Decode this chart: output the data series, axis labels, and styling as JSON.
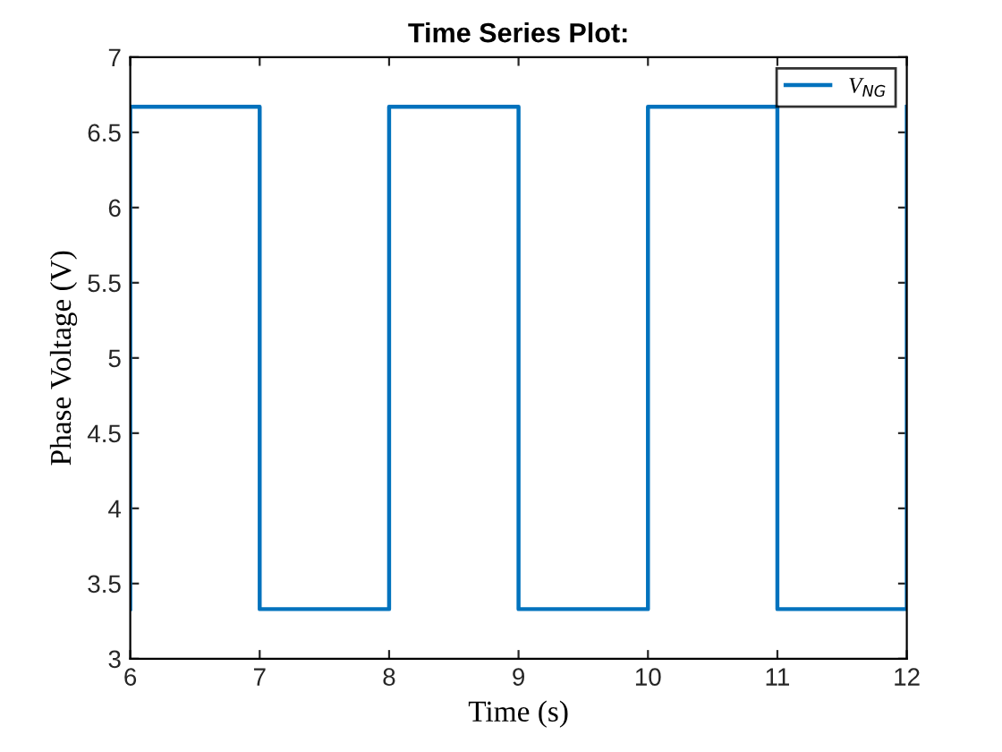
{
  "chart_data": {
    "type": "line",
    "title": "Time Series Plot:",
    "xlabel": "Time (s)",
    "ylabel": "Phase Voltage (V)",
    "x": [
      6,
      6,
      7,
      7,
      8,
      8,
      9,
      9,
      10,
      10,
      11,
      11,
      12,
      12
    ],
    "series": [
      {
        "name": "V$_{NG}$",
        "color": "#0072bd",
        "values": [
          3.33,
          6.67,
          6.67,
          3.33,
          3.33,
          6.67,
          6.67,
          3.33,
          3.33,
          6.67,
          6.67,
          3.33,
          3.33,
          6.67
        ]
      }
    ],
    "xlim": [
      6,
      12
    ],
    "xticks": [
      6,
      7,
      8,
      9,
      10,
      11,
      12
    ],
    "ylim": [
      3,
      7
    ],
    "yticks": [
      3,
      3.5,
      4,
      4.5,
      5,
      5.5,
      6,
      6.5,
      7
    ],
    "grid": false,
    "legend": "top right",
    "marker": "none",
    "line_style": "solid"
  }
}
